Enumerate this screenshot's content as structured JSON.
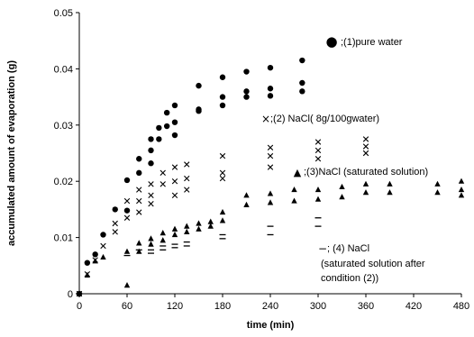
{
  "chart_data": {
    "type": "scatter",
    "xlabel": "time (min)",
    "ylabel": "accumulated amount of evaporation (g)",
    "xlim": [
      0,
      480
    ],
    "ylim": [
      0,
      0.05
    ],
    "x_ticks": [
      "0",
      "60",
      "120",
      "180",
      "240",
      "300",
      "360",
      "420",
      "480"
    ],
    "y_ticks": [
      "0",
      "0.01",
      "0.02",
      "0.03",
      "0.04",
      "0.05"
    ],
    "grid": false,
    "series": [
      {
        "name": "(1)pure water",
        "marker": "circle",
        "legend_symbol": "●",
        "legend_text": ";(1)pure water",
        "points": [
          [
            0,
            0
          ],
          [
            10,
            0.0055
          ],
          [
            20,
            0.007
          ],
          [
            30,
            0.0105
          ],
          [
            45,
            0.015
          ],
          [
            60,
            0.0202
          ],
          [
            60,
            0.0148
          ],
          [
            75,
            0.024
          ],
          [
            75,
            0.0215
          ],
          [
            90,
            0.0275
          ],
          [
            90,
            0.0255
          ],
          [
            90,
            0.0232
          ],
          [
            100,
            0.0295
          ],
          [
            100,
            0.0275
          ],
          [
            110,
            0.0322
          ],
          [
            110,
            0.0298
          ],
          [
            120,
            0.0335
          ],
          [
            120,
            0.0305
          ],
          [
            120,
            0.0282
          ],
          [
            150,
            0.037
          ],
          [
            150,
            0.0328
          ],
          [
            150,
            0.0325
          ],
          [
            180,
            0.0385
          ],
          [
            180,
            0.035
          ],
          [
            180,
            0.0335
          ],
          [
            210,
            0.0395
          ],
          [
            210,
            0.036
          ],
          [
            210,
            0.035
          ],
          [
            240,
            0.0402
          ],
          [
            240,
            0.0365
          ],
          [
            240,
            0.0352
          ],
          [
            280,
            0.0415
          ],
          [
            280,
            0.0375
          ],
          [
            280,
            0.036
          ]
        ]
      },
      {
        "name": "(2) NaCl( 8g/100gwater)",
        "marker": "x",
        "legend_symbol": "×",
        "legend_text": ";(2) NaCl( 8g/100gwater)",
        "points": [
          [
            0,
            0
          ],
          [
            10,
            0.0035
          ],
          [
            20,
            0.006
          ],
          [
            30,
            0.0085
          ],
          [
            45,
            0.0125
          ],
          [
            45,
            0.011
          ],
          [
            60,
            0.0165
          ],
          [
            60,
            0.0135
          ],
          [
            75,
            0.0185
          ],
          [
            75,
            0.0165
          ],
          [
            75,
            0.0145
          ],
          [
            90,
            0.0195
          ],
          [
            90,
            0.0175
          ],
          [
            90,
            0.016
          ],
          [
            105,
            0.0215
          ],
          [
            105,
            0.0195
          ],
          [
            120,
            0.0225
          ],
          [
            120,
            0.02
          ],
          [
            120,
            0.0175
          ],
          [
            135,
            0.023
          ],
          [
            135,
            0.0205
          ],
          [
            135,
            0.0185
          ],
          [
            180,
            0.0245
          ],
          [
            180,
            0.0215
          ],
          [
            180,
            0.0205
          ],
          [
            240,
            0.026
          ],
          [
            240,
            0.0245
          ],
          [
            240,
            0.0225
          ],
          [
            300,
            0.027
          ],
          [
            300,
            0.0255
          ],
          [
            300,
            0.024
          ],
          [
            360,
            0.0275
          ],
          [
            360,
            0.0262
          ],
          [
            360,
            0.025
          ]
        ]
      },
      {
        "name": "(3)NaCl (saturated solution)",
        "marker": "triangle",
        "legend_symbol": "▲",
        "legend_text": ";(3)NaCl (saturated solution)",
        "points": [
          [
            0,
            0
          ],
          [
            10,
            0.0033
          ],
          [
            20,
            0.0058
          ],
          [
            30,
            0.0065
          ],
          [
            60,
            0.0075
          ],
          [
            60,
            0.0015
          ],
          [
            75,
            0.009
          ],
          [
            75,
            0.0075
          ],
          [
            90,
            0.0098
          ],
          [
            90,
            0.0088
          ],
          [
            105,
            0.0108
          ],
          [
            105,
            0.0095
          ],
          [
            120,
            0.0115
          ],
          [
            120,
            0.0105
          ],
          [
            135,
            0.012
          ],
          [
            135,
            0.011
          ],
          [
            150,
            0.0125
          ],
          [
            150,
            0.0115
          ],
          [
            165,
            0.0128
          ],
          [
            165,
            0.012
          ],
          [
            180,
            0.0145
          ],
          [
            180,
            0.013
          ],
          [
            210,
            0.0175
          ],
          [
            210,
            0.0158
          ],
          [
            240,
            0.0178
          ],
          [
            240,
            0.0162
          ],
          [
            270,
            0.0185
          ],
          [
            270,
            0.0165
          ],
          [
            300,
            0.0185
          ],
          [
            300,
            0.0168
          ],
          [
            330,
            0.019
          ],
          [
            330,
            0.0172
          ],
          [
            360,
            0.0195
          ],
          [
            360,
            0.018
          ],
          [
            390,
            0.0195
          ],
          [
            390,
            0.018
          ],
          [
            450,
            0.0195
          ],
          [
            450,
            0.018
          ],
          [
            480,
            0.02
          ],
          [
            480,
            0.0185
          ],
          [
            480,
            0.0175
          ]
        ]
      },
      {
        "name": "(4) NaCl (saturated solution after condition (2))",
        "marker": "dash",
        "legend_symbol": "−",
        "legend_text": "; (4) NaCl",
        "legend_lines": [
          "(saturated solution after",
          "condition (2))"
        ],
        "points": [
          [
            60,
            0.0068
          ],
          [
            75,
            0.0078
          ],
          [
            90,
            0.0078
          ],
          [
            90,
            0.0072
          ],
          [
            105,
            0.0085
          ],
          [
            105,
            0.0078
          ],
          [
            120,
            0.0088
          ],
          [
            120,
            0.0082
          ],
          [
            135,
            0.0092
          ],
          [
            135,
            0.0085
          ],
          [
            180,
            0.0105
          ],
          [
            180,
            0.0098
          ],
          [
            240,
            0.012
          ],
          [
            240,
            0.0105
          ],
          [
            300,
            0.0135
          ],
          [
            300,
            0.012
          ]
        ]
      }
    ]
  }
}
